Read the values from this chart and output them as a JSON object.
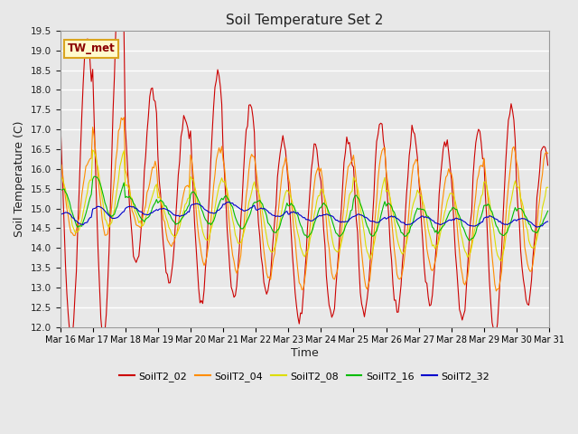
{
  "title": "Soil Temperature Set 2",
  "xlabel": "Time",
  "ylabel": "Soil Temperature (C)",
  "ylim": [
    12.0,
    19.5
  ],
  "yticks": [
    12.0,
    12.5,
    13.0,
    13.5,
    14.0,
    14.5,
    15.0,
    15.5,
    16.0,
    16.5,
    17.0,
    17.5,
    18.0,
    18.5,
    19.0,
    19.5
  ],
  "x_labels": [
    "Mar 16",
    "Mar 17",
    "Mar 18",
    "Mar 19",
    "Mar 20",
    "Mar 21",
    "Mar 22",
    "Mar 23",
    "Mar 24",
    "Mar 25",
    "Mar 26",
    "Mar 27",
    "Mar 28",
    "Mar 29",
    "Mar 30",
    "Mar 31"
  ],
  "annotation_text": "TW_met",
  "annotation_color": "#8B0000",
  "annotation_bg": "#FFFACD",
  "annotation_border": "#DAA520",
  "bg_color": "#E8E8E8",
  "plot_bg": "#E8E8E8",
  "grid_color": "#FFFFFF",
  "colors": {
    "SoilT2_02": "#CC0000",
    "SoilT2_04": "#FF8C00",
    "SoilT2_08": "#DDDD00",
    "SoilT2_16": "#00BB00",
    "SoilT2_32": "#0000CC"
  },
  "series_keys": [
    "SoilT2_02",
    "SoilT2_04",
    "SoilT2_08",
    "SoilT2_16",
    "SoilT2_32"
  ],
  "n_days": 15,
  "pts_per_day": 24,
  "base_temp": 14.7,
  "amp_02": [
    3.8,
    4.5,
    2.2,
    2.1,
    2.9,
    2.4,
    1.9,
    2.2,
    2.2,
    2.5,
    2.3,
    2.1,
    2.4,
    2.9,
    2.0
  ],
  "amp_04": [
    1.0,
    1.5,
    0.8,
    0.8,
    1.5,
    1.5,
    1.5,
    1.5,
    1.5,
    1.8,
    1.5,
    1.3,
    1.5,
    1.8,
    1.5
  ],
  "amp_08": [
    0.7,
    1.0,
    0.5,
    0.5,
    0.8,
    0.8,
    0.8,
    0.8,
    0.8,
    1.0,
    0.8,
    0.7,
    0.8,
    1.0,
    0.8
  ],
  "amp_16": [
    0.5,
    0.5,
    0.3,
    0.3,
    0.4,
    0.4,
    0.4,
    0.4,
    0.4,
    0.5,
    0.4,
    0.3,
    0.4,
    0.4,
    0.3
  ],
  "amp_32": [
    0.15,
    0.15,
    0.1,
    0.1,
    0.12,
    0.1,
    0.1,
    0.1,
    0.1,
    0.1,
    0.1,
    0.1,
    0.1,
    0.1,
    0.1
  ],
  "mean_02": [
    15.5,
    16.2,
    15.8,
    15.2,
    15.5,
    15.2,
    14.8,
    14.4,
    14.5,
    14.8,
    14.7,
    14.7,
    14.6,
    14.7,
    14.6
  ],
  "mean_04": [
    15.3,
    15.8,
    15.3,
    14.8,
    15.1,
    14.9,
    14.7,
    14.5,
    14.7,
    14.8,
    14.7,
    14.7,
    14.6,
    14.7,
    14.9
  ],
  "mean_08": [
    15.1,
    15.5,
    15.1,
    14.8,
    15.0,
    14.9,
    14.7,
    14.6,
    14.7,
    14.8,
    14.7,
    14.7,
    14.6,
    14.7,
    14.8
  ],
  "mean_16": [
    15.0,
    15.3,
    15.0,
    14.9,
    15.0,
    14.9,
    14.8,
    14.7,
    14.7,
    14.8,
    14.7,
    14.7,
    14.6,
    14.7,
    14.7
  ],
  "mean_32": [
    14.75,
    14.9,
    14.95,
    14.9,
    15.0,
    15.05,
    14.9,
    14.8,
    14.75,
    14.75,
    14.7,
    14.7,
    14.65,
    14.7,
    14.65
  ],
  "phase_shift": 14
}
